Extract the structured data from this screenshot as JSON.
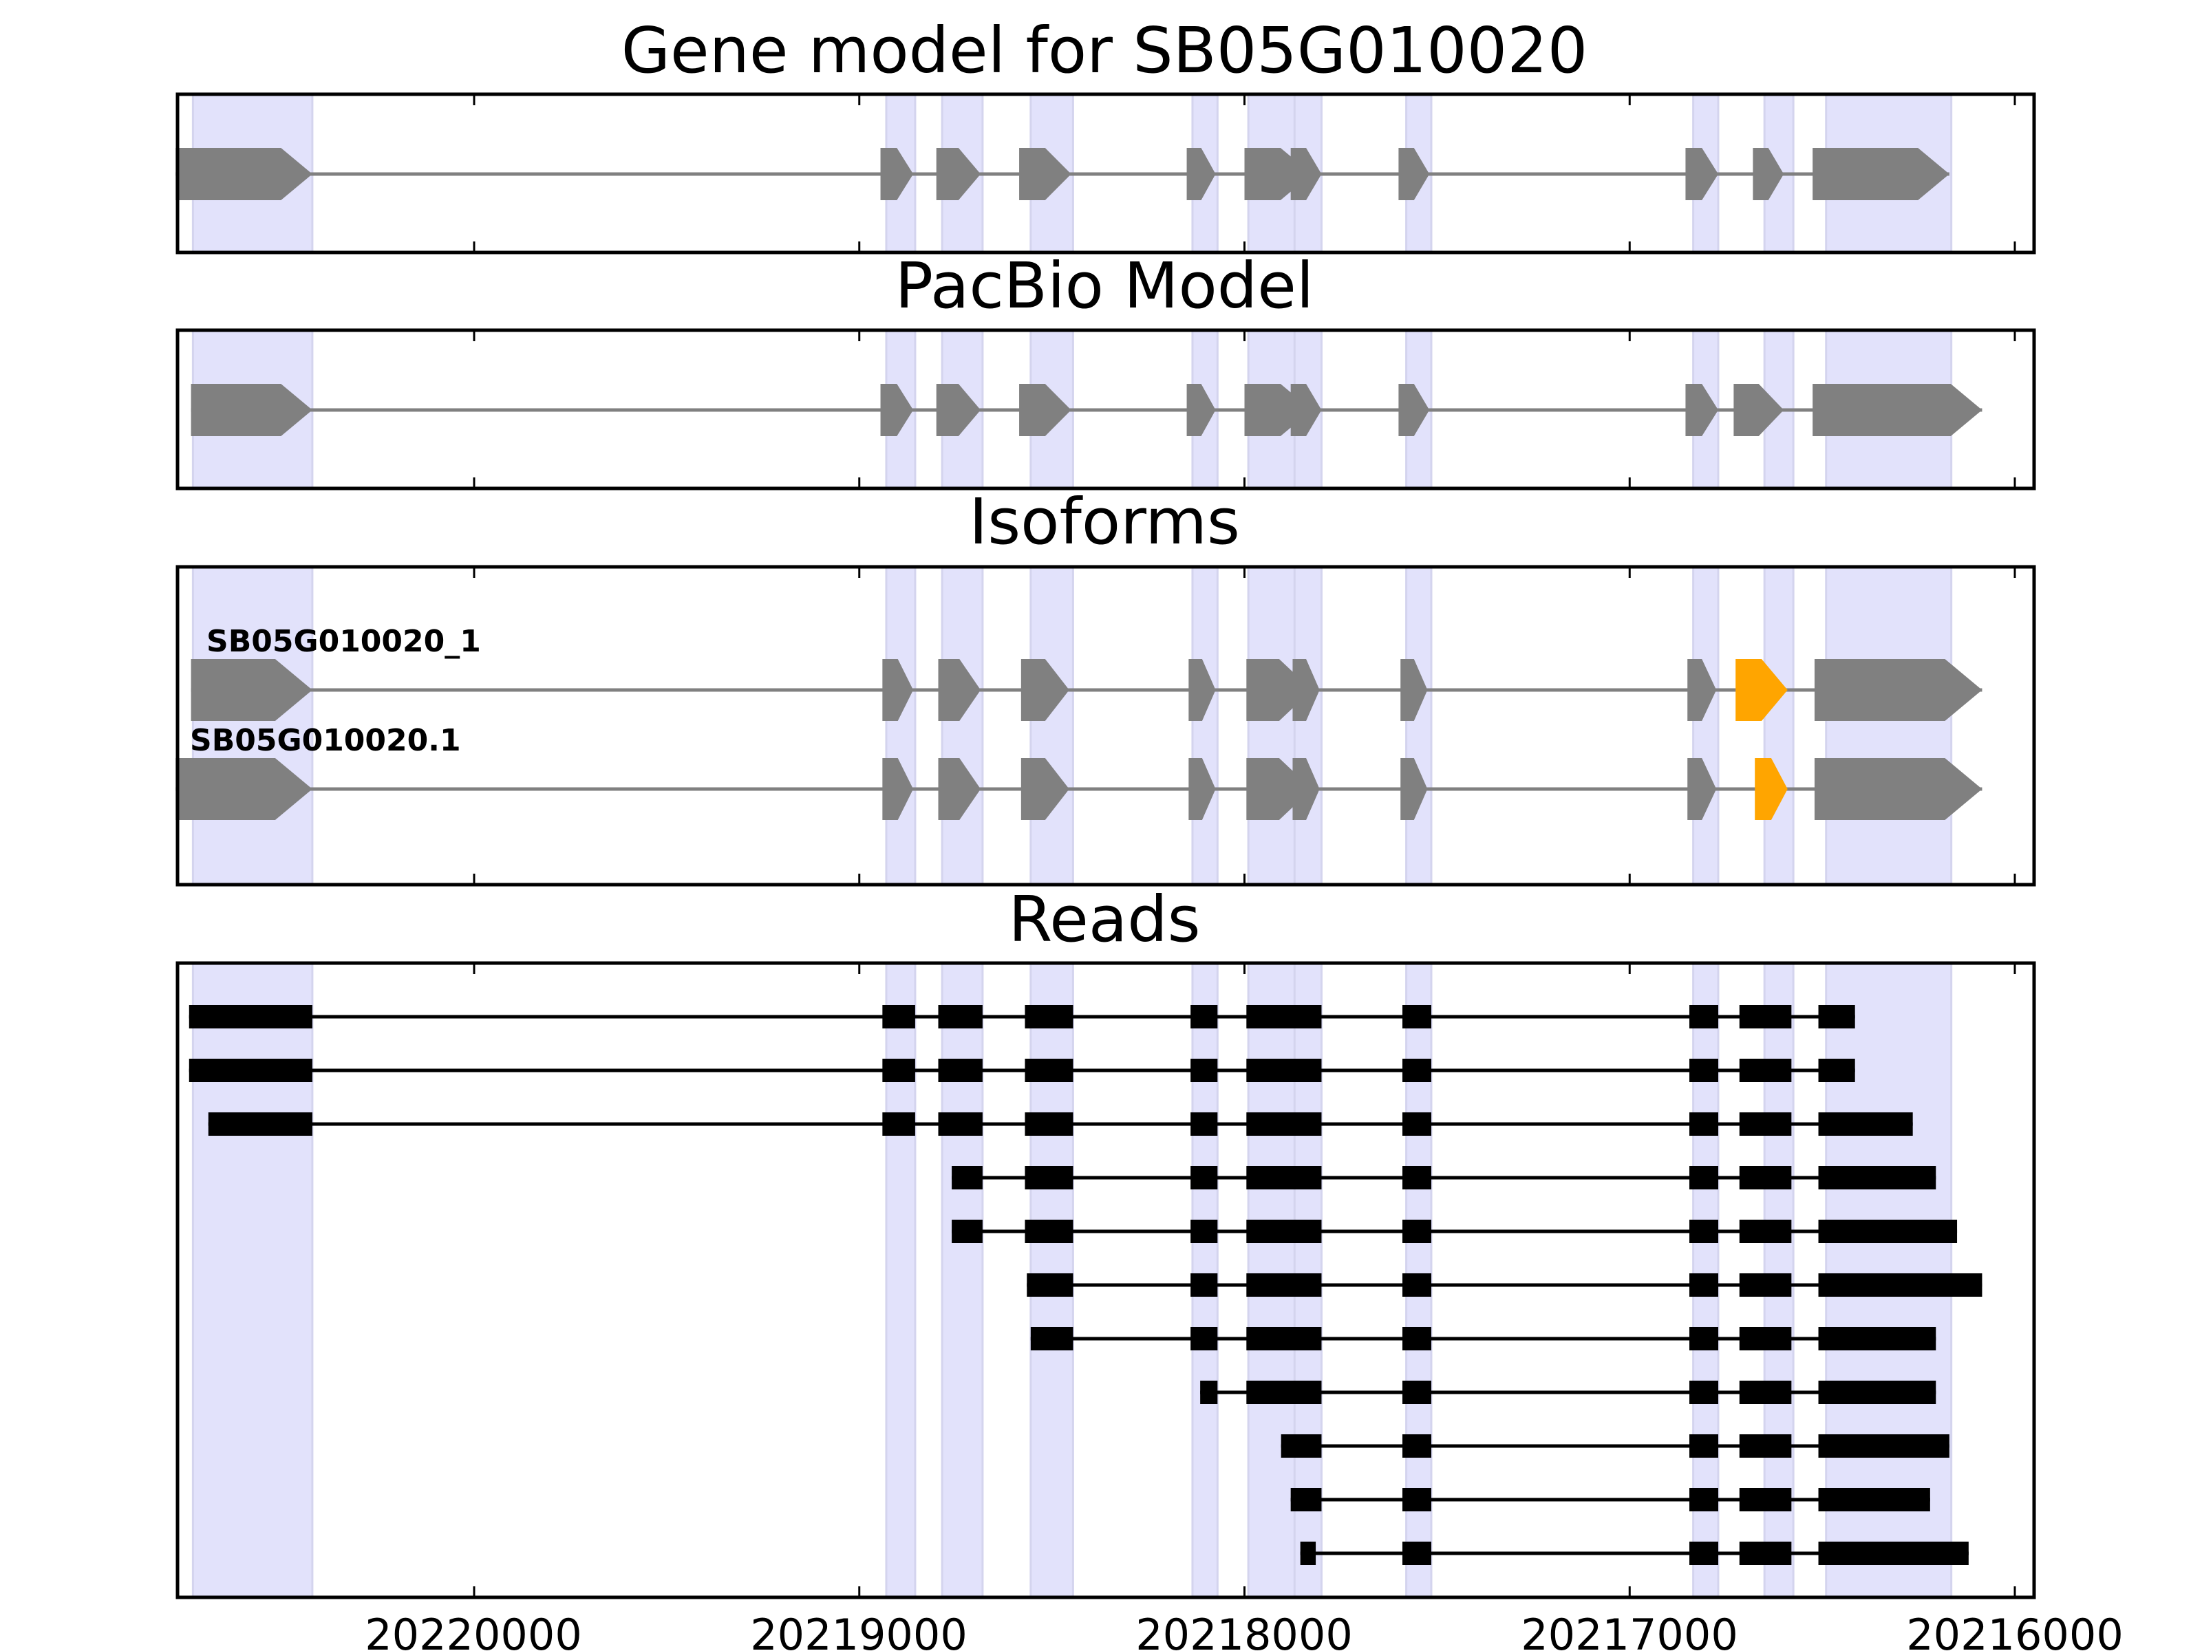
{
  "figure": {
    "panel_titles": [
      "Gene model for SB05G010020",
      "PacBio Model",
      "Isoforms",
      "Reads"
    ],
    "x_ticks": [
      "20220000",
      "20219000",
      "20218000",
      "20217000",
      "20216000"
    ],
    "x_axis_reversed": true
  },
  "chart_data": {
    "type": "gene-structure",
    "xlim": [
      20220770,
      20215950
    ],
    "tick_values": [
      20220000,
      20219000,
      20218000,
      20217000,
      20216000
    ],
    "highlight_regions": [
      [
        20220730,
        20220420
      ],
      [
        20218930,
        20218855
      ],
      [
        20218785,
        20218680
      ],
      [
        20218555,
        20218445
      ],
      [
        20218135,
        20218070
      ],
      [
        20217990,
        20217825
      ],
      [
        20217870,
        20217800
      ],
      [
        20217580,
        20217515
      ],
      [
        20216835,
        20216770
      ],
      [
        20216650,
        20216575
      ],
      [
        20216490,
        20216165
      ]
    ],
    "colors": {
      "exon": "#808080",
      "highlight": "#e2e2fb",
      "alt_exon": "#ffa500",
      "read": "#000000",
      "intron": "#808080"
    },
    "gene_model": {
      "exons": [
        [
          20220775,
          20220420
        ],
        [
          20218945,
          20218860
        ],
        [
          20218800,
          20218685
        ],
        [
          20218585,
          20218450
        ],
        [
          20218150,
          20218075
        ],
        [
          20218000,
          20217825
        ],
        [
          20217880,
          20217800
        ],
        [
          20217600,
          20217520
        ],
        [
          20216855,
          20216770
        ],
        [
          20216680,
          20216600
        ],
        [
          20216525,
          20216170
        ]
      ]
    },
    "pacbio_model": {
      "exons": [
        [
          20220735,
          20220420
        ],
        [
          20218945,
          20218860
        ],
        [
          20218800,
          20218685
        ],
        [
          20218585,
          20218450
        ],
        [
          20218150,
          20218075
        ],
        [
          20218000,
          20217825
        ],
        [
          20217880,
          20217800
        ],
        [
          20217600,
          20217520
        ],
        [
          20216855,
          20216770
        ],
        [
          20216730,
          20216600
        ],
        [
          20216525,
          20216085
        ]
      ]
    },
    "isoforms": [
      {
        "name": "SB05G010020_1",
        "exons": [
          [
            20220735,
            20220420
          ],
          [
            20218940,
            20218860
          ],
          [
            20218795,
            20218685
          ],
          [
            20218580,
            20218455
          ],
          [
            20218145,
            20218075
          ],
          [
            20217995,
            20217825
          ],
          [
            20217875,
            20217805
          ],
          [
            20217595,
            20217525
          ],
          [
            20216850,
            20216775
          ],
          [
            20216725,
            20216590
          ],
          [
            20216520,
            20216085
          ]
        ],
        "alt_exon_index": 9
      },
      {
        "name": "SB05G010020.1",
        "exons": [
          [
            20220775,
            20220420
          ],
          [
            20218940,
            20218860
          ],
          [
            20218795,
            20218685
          ],
          [
            20218580,
            20218455
          ],
          [
            20218145,
            20218075
          ],
          [
            20217995,
            20217825
          ],
          [
            20217875,
            20217805
          ],
          [
            20217595,
            20217525
          ],
          [
            20216850,
            20216775
          ],
          [
            20216675,
            20216590
          ],
          [
            20216520,
            20216085
          ]
        ],
        "alt_exon_index": 9
      }
    ],
    "reads": [
      {
        "exons": [
          [
            20220740,
            20220420
          ],
          [
            20218940,
            20218855
          ],
          [
            20218795,
            20218680
          ],
          [
            20218570,
            20218445
          ],
          [
            20218140,
            20218070
          ],
          [
            20217995,
            20217825
          ],
          [
            20217870,
            20217800
          ],
          [
            20217590,
            20217515
          ],
          [
            20216845,
            20216770
          ],
          [
            20216715,
            20216580
          ],
          [
            20216510,
            20216415
          ]
        ]
      },
      {
        "exons": [
          [
            20220740,
            20220420
          ],
          [
            20218940,
            20218855
          ],
          [
            20218795,
            20218680
          ],
          [
            20218570,
            20218445
          ],
          [
            20218140,
            20218070
          ],
          [
            20217995,
            20217825
          ],
          [
            20217870,
            20217800
          ],
          [
            20217590,
            20217515
          ],
          [
            20216845,
            20216770
          ],
          [
            20216715,
            20216580
          ],
          [
            20216510,
            20216415
          ]
        ]
      },
      {
        "exons": [
          [
            20220690,
            20220420
          ],
          [
            20218940,
            20218855
          ],
          [
            20218795,
            20218680
          ],
          [
            20218570,
            20218445
          ],
          [
            20218140,
            20218070
          ],
          [
            20217995,
            20217825
          ],
          [
            20217870,
            20217800
          ],
          [
            20217590,
            20217515
          ],
          [
            20216845,
            20216770
          ],
          [
            20216715,
            20216580
          ],
          [
            20216510,
            20216265
          ]
        ]
      },
      {
        "exons": [
          [
            20218760,
            20218680
          ],
          [
            20218570,
            20218445
          ],
          [
            20218140,
            20218070
          ],
          [
            20217995,
            20217825
          ],
          [
            20217870,
            20217800
          ],
          [
            20217590,
            20217515
          ],
          [
            20216845,
            20216770
          ],
          [
            20216715,
            20216580
          ],
          [
            20216510,
            20216205
          ]
        ]
      },
      {
        "exons": [
          [
            20218760,
            20218680
          ],
          [
            20218570,
            20218445
          ],
          [
            20218140,
            20218070
          ],
          [
            20217995,
            20217825
          ],
          [
            20217870,
            20217800
          ],
          [
            20217590,
            20217515
          ],
          [
            20216845,
            20216770
          ],
          [
            20216715,
            20216580
          ],
          [
            20216510,
            20216150
          ]
        ]
      },
      {
        "exons": [
          [
            20218565,
            20218445
          ],
          [
            20218140,
            20218070
          ],
          [
            20217995,
            20217825
          ],
          [
            20217870,
            20217800
          ],
          [
            20217590,
            20217515
          ],
          [
            20216845,
            20216770
          ],
          [
            20216715,
            20216580
          ],
          [
            20216510,
            20216085
          ]
        ]
      },
      {
        "exons": [
          [
            20218555,
            20218445
          ],
          [
            20218140,
            20218070
          ],
          [
            20217995,
            20217825
          ],
          [
            20217870,
            20217800
          ],
          [
            20217590,
            20217515
          ],
          [
            20216845,
            20216770
          ],
          [
            20216715,
            20216580
          ],
          [
            20216510,
            20216205
          ]
        ]
      },
      {
        "exons": [
          [
            20218115,
            20218070
          ],
          [
            20217995,
            20217825
          ],
          [
            20217870,
            20217800
          ],
          [
            20217590,
            20217515
          ],
          [
            20216845,
            20216770
          ],
          [
            20216715,
            20216580
          ],
          [
            20216510,
            20216205
          ]
        ]
      },
      {
        "exons": [
          [
            20217905,
            20217825
          ],
          [
            20217870,
            20217800
          ],
          [
            20217590,
            20217515
          ],
          [
            20216845,
            20216770
          ],
          [
            20216715,
            20216580
          ],
          [
            20216510,
            20216170
          ]
        ]
      },
      {
        "exons": [
          [
            20217880,
            20217825
          ],
          [
            20217870,
            20217800
          ],
          [
            20217590,
            20217515
          ],
          [
            20216845,
            20216770
          ],
          [
            20216715,
            20216580
          ],
          [
            20216510,
            20216220
          ]
        ]
      },
      {
        "exons": [
          [
            20217855,
            20217815
          ],
          [
            20217590,
            20217515
          ],
          [
            20216845,
            20216770
          ],
          [
            20216715,
            20216580
          ],
          [
            20216510,
            20216120
          ]
        ]
      }
    ]
  }
}
